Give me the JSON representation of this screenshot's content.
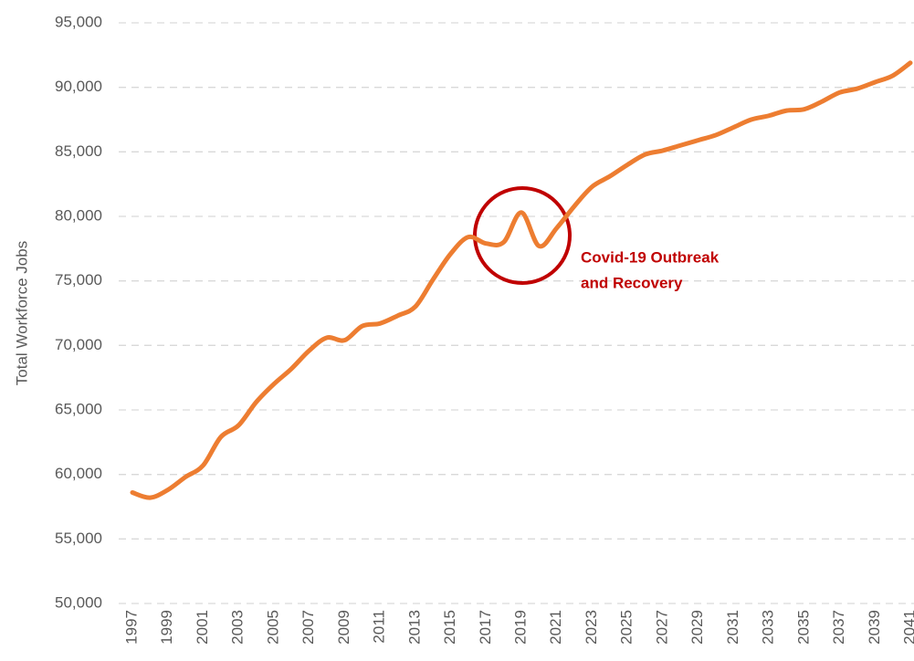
{
  "chart_data": {
    "type": "line",
    "y_label": "Total Workforce Jobs",
    "x": [
      1997,
      1998,
      1999,
      2000,
      2001,
      2002,
      2003,
      2004,
      2005,
      2006,
      2007,
      2008,
      2009,
      2010,
      2011,
      2012,
      2013,
      2014,
      2015,
      2016,
      2017,
      2018,
      2019,
      2020,
      2021,
      2022,
      2023,
      2024,
      2025,
      2026,
      2027,
      2028,
      2029,
      2030,
      2031,
      2032,
      2033,
      2034,
      2035,
      2036,
      2037,
      2038,
      2039,
      2040,
      2041
    ],
    "series": [
      {
        "color": "#ed7d31",
        "values": [
          58600,
          58200,
          58800,
          59800,
          60700,
          62900,
          63800,
          65600,
          67000,
          68200,
          69600,
          70600,
          70400,
          71500,
          71700,
          72300,
          73000,
          75100,
          77100,
          78400,
          77900,
          78000,
          80300,
          77700,
          79100,
          80800,
          82300,
          83100,
          84000,
          84800,
          85100,
          85500,
          85900,
          86300,
          86900,
          87500,
          87800,
          88200,
          88300,
          88900,
          89600,
          89900,
          90400,
          90900,
          91900
        ]
      }
    ],
    "xlim": [
      1997,
      2041
    ],
    "xticks": [
      1997,
      1999,
      2001,
      2003,
      2005,
      2007,
      2009,
      2011,
      2013,
      2015,
      2017,
      2019,
      2021,
      2023,
      2025,
      2027,
      2029,
      2031,
      2033,
      2035,
      2037,
      2039,
      2041
    ],
    "ylim": [
      50000,
      95000
    ],
    "yticks": [
      {
        "value": 50000,
        "label": "50,000"
      },
      {
        "value": 55000,
        "label": "55,000"
      },
      {
        "value": 60000,
        "label": "60,000"
      },
      {
        "value": 65000,
        "label": "65,000"
      },
      {
        "value": 70000,
        "label": "70,000"
      },
      {
        "value": 75000,
        "label": "75,000"
      },
      {
        "value": 80000,
        "label": "80,000"
      },
      {
        "value": 85000,
        "label": "85,000"
      },
      {
        "value": 90000,
        "label": "90,000"
      },
      {
        "value": 95000,
        "label": "95,000"
      }
    ],
    "grid": true,
    "annotation": [
      "Covid-19 Outbreak",
      "and Recovery"
    ]
  }
}
